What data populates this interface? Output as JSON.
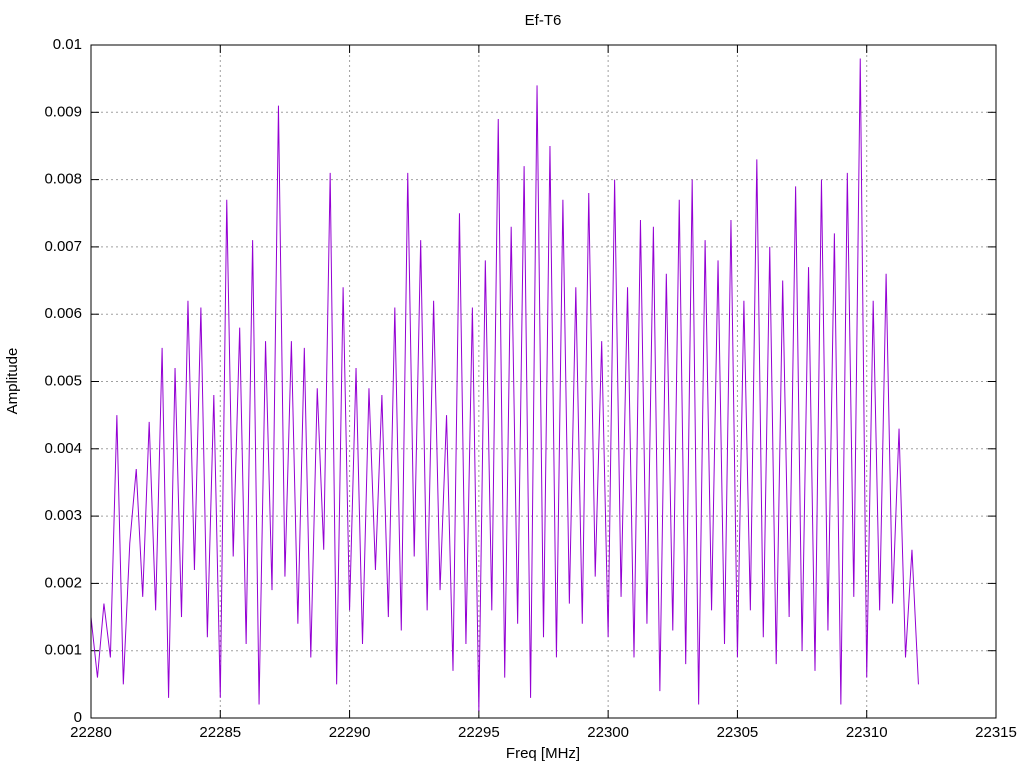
{
  "chart_data": {
    "type": "line",
    "title": "Ef-T6",
    "x_label": "Freq [MHz]",
    "y_label": "Amplitude",
    "color": "#9400d3",
    "grid": true,
    "xlim": [
      22280,
      22315
    ],
    "xticks": [
      22280,
      22285,
      22290,
      22295,
      22300,
      22305,
      22310,
      22315
    ],
    "ylim": [
      0,
      0.01
    ],
    "yticks": [
      0,
      0.001,
      0.002,
      0.003,
      0.004,
      0.005,
      0.006,
      0.007,
      0.008,
      0.009,
      0.01
    ],
    "x": [
      22280,
      22280.25,
      22280.5,
      22280.75,
      22281,
      22281.25,
      22281.5,
      22281.75,
      22282,
      22282.25,
      22282.5,
      22282.75,
      22283,
      22283.25,
      22283.5,
      22283.75,
      22284,
      22284.25,
      22284.5,
      22284.75,
      22285,
      22285.25,
      22285.5,
      22285.75,
      22286,
      22286.25,
      22286.5,
      22286.75,
      22287,
      22287.25,
      22287.5,
      22287.75,
      22288,
      22288.25,
      22288.5,
      22288.75,
      22289,
      22289.25,
      22289.5,
      22289.75,
      22290,
      22290.25,
      22290.5,
      22290.75,
      22291,
      22291.25,
      22291.5,
      22291.75,
      22292,
      22292.25,
      22292.5,
      22292.75,
      22293,
      22293.25,
      22293.5,
      22293.75,
      22294,
      22294.25,
      22294.5,
      22294.75,
      22295,
      22295.25,
      22295.5,
      22295.75,
      22296,
      22296.25,
      22296.5,
      22296.75,
      22297,
      22297.25,
      22297.5,
      22297.75,
      22298,
      22298.25,
      22298.5,
      22298.75,
      22299,
      22299.25,
      22299.5,
      22299.75,
      22300,
      22300.25,
      22300.5,
      22300.75,
      22301,
      22301.25,
      22301.5,
      22301.75,
      22302,
      22302.25,
      22302.5,
      22302.75,
      22303,
      22303.25,
      22303.5,
      22303.75,
      22304,
      22304.25,
      22304.5,
      22304.75,
      22305,
      22305.25,
      22305.5,
      22305.75,
      22306,
      22306.25,
      22306.5,
      22306.75,
      22307,
      22307.25,
      22307.5,
      22307.75,
      22308,
      22308.25,
      22308.5,
      22308.75,
      22309,
      22309.25,
      22309.5,
      22309.75,
      22310,
      22310.25,
      22310.5,
      22310.75,
      22311,
      22311.25,
      22311.5,
      22311.75,
      22312
    ],
    "values": [
      0.0015,
      0.0006,
      0.0017,
      0.0009,
      0.0045,
      0.0005,
      0.0026,
      0.0037,
      0.0018,
      0.0044,
      0.0016,
      0.0055,
      0.0003,
      0.0052,
      0.0015,
      0.0062,
      0.0022,
      0.0061,
      0.0012,
      0.0048,
      0.0003,
      0.0077,
      0.0024,
      0.0058,
      0.0011,
      0.0071,
      0.0002,
      0.0056,
      0.0019,
      0.0091,
      0.0021,
      0.0056,
      0.0014,
      0.0055,
      0.0009,
      0.0049,
      0.0025,
      0.0081,
      0.0005,
      0.0064,
      0.0016,
      0.0052,
      0.0011,
      0.0049,
      0.0022,
      0.0048,
      0.0015,
      0.0061,
      0.0013,
      0.0081,
      0.0024,
      0.0071,
      0.0016,
      0.0062,
      0.0019,
      0.0045,
      0.0007,
      0.0075,
      0.0011,
      0.0061,
      0.0001,
      0.0068,
      0.0016,
      0.0089,
      0.0006,
      0.0073,
      0.0014,
      0.0082,
      0.0003,
      0.0094,
      0.0012,
      0.0085,
      0.0009,
      0.0077,
      0.0017,
      0.0064,
      0.0014,
      0.0078,
      0.0021,
      0.0056,
      0.0012,
      0.008,
      0.0018,
      0.0064,
      0.0009,
      0.0074,
      0.0014,
      0.0073,
      0.0004,
      0.0066,
      0.0013,
      0.0077,
      0.0008,
      0.008,
      0.0002,
      0.0071,
      0.0016,
      0.0068,
      0.0011,
      0.0074,
      0.0009,
      0.0062,
      0.0016,
      0.0083,
      0.0012,
      0.007,
      0.0008,
      0.0065,
      0.0015,
      0.0079,
      0.001,
      0.0067,
      0.0007,
      0.008,
      0.0013,
      0.0072,
      0.0002,
      0.0081,
      0.0018,
      0.0098,
      0.0006,
      0.0062,
      0.0016,
      0.0066,
      0.0017,
      0.0043,
      0.0009,
      0.0025,
      0.0005
    ]
  }
}
